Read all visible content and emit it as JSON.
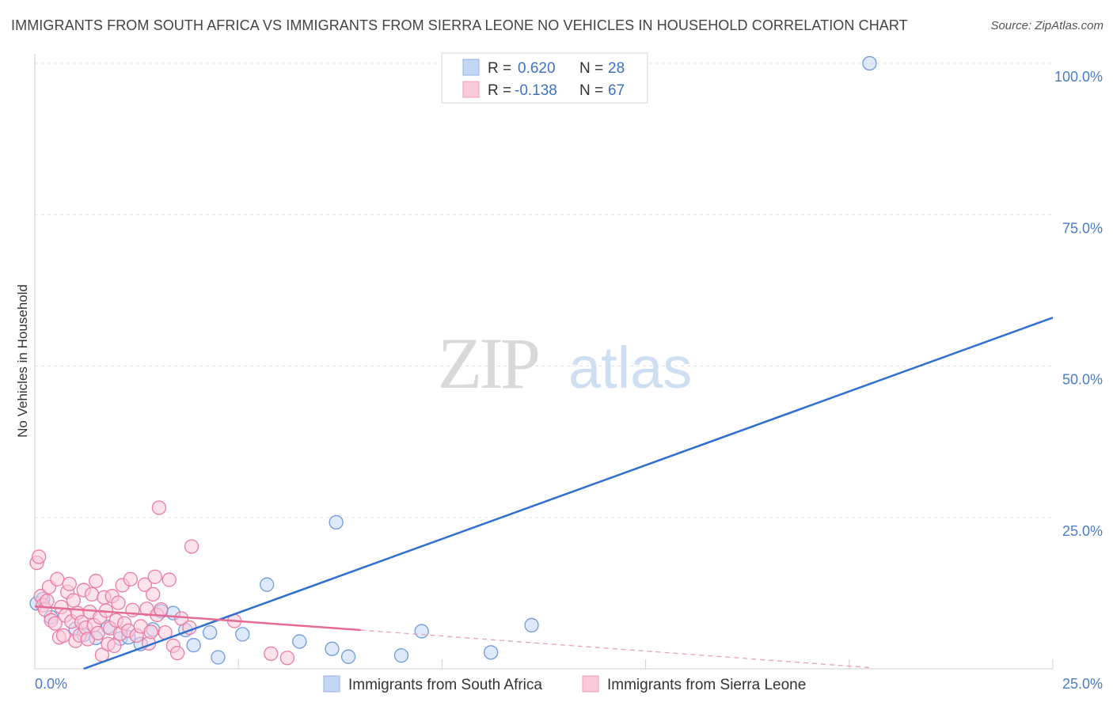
{
  "title": "IMMIGRANTS FROM SOUTH AFRICA VS IMMIGRANTS FROM SIERRA LEONE NO VEHICLES IN HOUSEHOLD CORRELATION CHART",
  "source": "Source: ZipAtlas.com",
  "watermark": {
    "zip": "ZIP",
    "atlas": "atlas"
  },
  "legend": {
    "r_label": "R =",
    "n_label": "N =",
    "entries": [
      {
        "r": "0.620",
        "n": "28",
        "color": "#a9c6f0"
      },
      {
        "r": "-0.138",
        "n": "67",
        "color": "#f6b7cb"
      }
    ]
  },
  "chart_data": {
    "type": "scatter",
    "title": "IMMIGRANTS FROM SOUTH AFRICA VS IMMIGRANTS FROM SIERRA LEONE NO VEHICLES IN HOUSEHOLD CORRELATION CHART",
    "xlabel": "",
    "ylabel": "No Vehicles in Household",
    "xlim": [
      0,
      25
    ],
    "ylim": [
      0,
      100
    ],
    "x_tick_labels": [
      "0.0%",
      "25.0%"
    ],
    "y_ticks": [
      25,
      50,
      75,
      100
    ],
    "y_tick_labels": [
      "25.0%",
      "50.0%",
      "75.0%",
      "100.0%"
    ],
    "grid": true,
    "legend_position": "top-center",
    "series": [
      {
        "name": "Immigrants from South Africa",
        "color": "#6f9ae0",
        "fill": "#c3d7f4",
        "points": [
          [
            0.05,
            10.8
          ],
          [
            0.4,
            8.5
          ],
          [
            1.0,
            6.6
          ],
          [
            1.2,
            5.6
          ],
          [
            1.5,
            5.1
          ],
          [
            1.8,
            6.9
          ],
          [
            2.1,
            5.0
          ],
          [
            2.3,
            5.2
          ],
          [
            2.6,
            4.1
          ],
          [
            2.9,
            6.5
          ],
          [
            3.1,
            9.5
          ],
          [
            3.4,
            9.2
          ],
          [
            3.7,
            6.4
          ],
          [
            3.9,
            3.9
          ],
          [
            4.3,
            6.0
          ],
          [
            4.5,
            1.9
          ],
          [
            5.1,
            5.7
          ],
          [
            5.7,
            13.9
          ],
          [
            6.5,
            4.5
          ],
          [
            7.3,
            3.3
          ],
          [
            7.4,
            24.2
          ],
          [
            7.7,
            2.0
          ],
          [
            9.0,
            2.2
          ],
          [
            9.5,
            6.2
          ],
          [
            11.2,
            2.7
          ],
          [
            12.2,
            7.2
          ],
          [
            20.5,
            100.0
          ],
          [
            0.2,
            11.5
          ]
        ],
        "trend": {
          "x0": 1.2,
          "y0": 0.0,
          "x1": 25.0,
          "y1": 58.0
        }
      },
      {
        "name": "Immigrants from Sierra Leone",
        "color": "#ec7ca3",
        "fill": "#f9cbda",
        "points": [
          [
            0.05,
            17.5
          ],
          [
            0.1,
            18.5
          ],
          [
            0.15,
            12.0
          ],
          [
            0.2,
            10.5
          ],
          [
            0.25,
            9.8
          ],
          [
            0.3,
            11.2
          ],
          [
            0.35,
            13.5
          ],
          [
            0.4,
            8.0
          ],
          [
            0.5,
            7.5
          ],
          [
            0.55,
            14.8
          ],
          [
            0.6,
            5.2
          ],
          [
            0.65,
            10.2
          ],
          [
            0.7,
            5.5
          ],
          [
            0.75,
            8.8
          ],
          [
            0.8,
            12.7
          ],
          [
            0.85,
            14.0
          ],
          [
            0.9,
            7.8
          ],
          [
            0.95,
            11.3
          ],
          [
            1.0,
            4.6
          ],
          [
            1.05,
            9.2
          ],
          [
            1.1,
            5.5
          ],
          [
            1.15,
            7.7
          ],
          [
            1.2,
            13.0
          ],
          [
            1.25,
            6.8
          ],
          [
            1.3,
            4.9
          ],
          [
            1.35,
            9.4
          ],
          [
            1.4,
            12.3
          ],
          [
            1.45,
            7.2
          ],
          [
            1.5,
            14.5
          ],
          [
            1.55,
            5.9
          ],
          [
            1.6,
            8.5
          ],
          [
            1.65,
            2.3
          ],
          [
            1.7,
            11.8
          ],
          [
            1.75,
            9.6
          ],
          [
            1.8,
            4.1
          ],
          [
            1.85,
            6.7
          ],
          [
            1.9,
            12.0
          ],
          [
            1.95,
            3.8
          ],
          [
            2.0,
            8.0
          ],
          [
            2.05,
            10.9
          ],
          [
            2.1,
            5.8
          ],
          [
            2.15,
            13.8
          ],
          [
            2.2,
            7.5
          ],
          [
            2.3,
            6.3
          ],
          [
            2.35,
            14.8
          ],
          [
            2.4,
            9.7
          ],
          [
            2.5,
            5.5
          ],
          [
            2.6,
            7.0
          ],
          [
            2.7,
            13.9
          ],
          [
            2.75,
            9.9
          ],
          [
            2.8,
            4.2
          ],
          [
            2.85,
            6.1
          ],
          [
            2.9,
            12.3
          ],
          [
            2.95,
            15.2
          ],
          [
            3.0,
            8.9
          ],
          [
            3.05,
            26.6
          ],
          [
            3.1,
            9.8
          ],
          [
            3.2,
            6.0
          ],
          [
            3.3,
            14.7
          ],
          [
            3.4,
            3.8
          ],
          [
            3.5,
            2.6
          ],
          [
            3.6,
            8.3
          ],
          [
            3.8,
            6.8
          ],
          [
            3.85,
            20.2
          ],
          [
            4.9,
            7.9
          ],
          [
            5.8,
            2.5
          ],
          [
            6.2,
            1.8
          ]
        ],
        "trend": {
          "x0": 0.0,
          "y0": 10.3,
          "x1": 8.0,
          "y1": 6.4
        },
        "trend_extension": {
          "x0": 8.0,
          "y0": 6.4,
          "x1": 20.5,
          "y1": 0.2
        }
      }
    ]
  }
}
